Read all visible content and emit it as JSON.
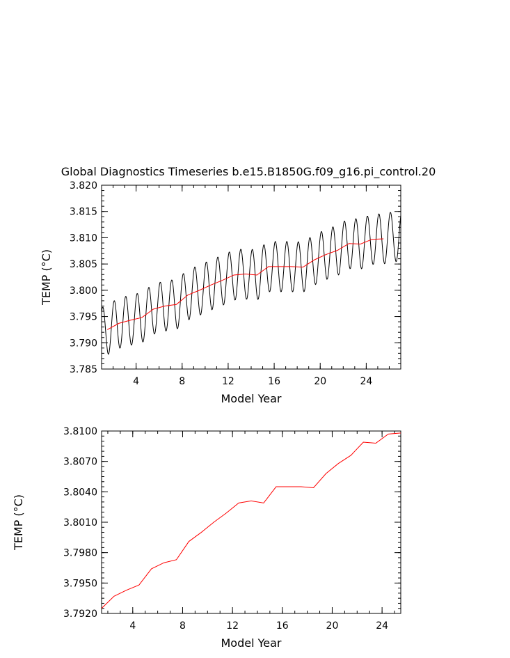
{
  "title": "Global Diagnostics Timeseries b.e15.B1850G.f09_g16.pi_control.20",
  "chart_data": [
    {
      "type": "line",
      "xlabel": "Model Year",
      "ylabel": "TEMP (°C)",
      "xlim": [
        1,
        27
      ],
      "ylim": [
        3.785,
        3.82
      ],
      "xticks": [
        "4",
        "8",
        "12",
        "16",
        "20",
        "24"
      ],
      "yticks": [
        "3.785",
        "3.790",
        "3.795",
        "3.800",
        "3.805",
        "3.810",
        "3.815",
        "3.820"
      ],
      "series": [
        {
          "color": "#000000",
          "style": "monthly",
          "annual_mean_x": [
            1.5,
            2.5,
            3.5,
            4.5,
            5.5,
            6.5,
            7.5,
            8.5,
            9.5,
            10.5,
            11.5,
            12.5,
            13.5,
            14.5,
            15.5,
            16.5,
            17.5,
            18.5,
            19.5,
            20.5,
            21.5,
            22.5,
            23.5,
            24.5,
            25.5,
            26.5
          ],
          "annual_mean_y": [
            3.7925,
            3.7937,
            3.7943,
            3.7948,
            3.7964,
            3.797,
            3.7973,
            3.7991,
            3.8,
            3.801,
            3.8019,
            3.8029,
            3.8031,
            3.8029,
            3.8045,
            3.8045,
            3.8045,
            3.8044,
            3.8058,
            3.8068,
            3.8076,
            3.8089,
            3.8088,
            3.8097,
            3.8098,
            3.8102
          ],
          "seasonal_amplitude": 0.0048
        },
        {
          "color": "#ff0000",
          "style": "annual",
          "x": [
            1.5,
            2.5,
            3.5,
            4.5,
            5.5,
            6.5,
            7.5,
            8.5,
            9.5,
            10.5,
            11.5,
            12.5,
            13.5,
            14.5,
            15.5,
            16.5,
            17.5,
            18.5,
            19.5,
            20.5,
            21.5,
            22.5,
            23.5,
            24.5,
            25.5
          ],
          "y": [
            3.7925,
            3.7937,
            3.7943,
            3.7948,
            3.7964,
            3.797,
            3.7973,
            3.7991,
            3.8,
            3.801,
            3.8019,
            3.8029,
            3.8031,
            3.8029,
            3.8045,
            3.8045,
            3.8045,
            3.8044,
            3.8058,
            3.8068,
            3.8076,
            3.8089,
            3.8088,
            3.8097,
            3.8098
          ]
        }
      ]
    },
    {
      "type": "line",
      "xlabel": "Model Year",
      "ylabel": "TEMP (°C)",
      "xlim": [
        1.5,
        25.5
      ],
      "ylim": [
        3.792,
        3.81
      ],
      "xticks": [
        "4",
        "8",
        "12",
        "16",
        "20",
        "24"
      ],
      "yticks": [
        "3.7920",
        "3.7950",
        "3.7980",
        "3.8010",
        "3.8040",
        "3.8070",
        "3.8100"
      ],
      "series": [
        {
          "color": "#ff0000",
          "x": [
            1.5,
            2.5,
            3.5,
            4.5,
            5.5,
            6.5,
            7.5,
            8.5,
            9.5,
            10.5,
            11.5,
            12.5,
            13.5,
            14.5,
            15.5,
            16.5,
            17.5,
            18.5,
            19.5,
            20.5,
            21.5,
            22.5,
            23.5,
            24.5,
            25.5
          ],
          "y": [
            3.7925,
            3.7937,
            3.7943,
            3.7948,
            3.7964,
            3.797,
            3.7973,
            3.7991,
            3.8,
            3.801,
            3.8019,
            3.8029,
            3.8031,
            3.8029,
            3.8045,
            3.8045,
            3.8045,
            3.8044,
            3.8058,
            3.8068,
            3.8076,
            3.8089,
            3.8088,
            3.8097,
            3.8098
          ]
        }
      ]
    }
  ]
}
